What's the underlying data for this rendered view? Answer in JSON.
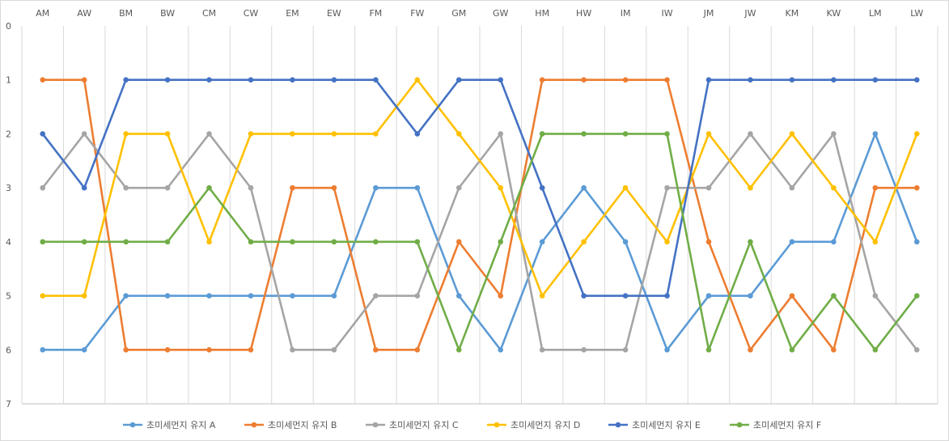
{
  "chart_data": {
    "type": "line",
    "categories": [
      "AM",
      "AW",
      "BM",
      "BW",
      "CM",
      "CW",
      "EM",
      "EW",
      "FM",
      "FW",
      "GM",
      "GW",
      "HM",
      "HW",
      "IM",
      "IW",
      "JM",
      "JW",
      "KM",
      "KW",
      "LM",
      "LW"
    ],
    "ylim": [
      0,
      7
    ],
    "y_reversed": true,
    "y_ticks": [
      "0",
      "1",
      "2",
      "3",
      "4",
      "5",
      "6",
      "7"
    ],
    "grid": "vertical",
    "legend": "bottom",
    "series": [
      {
        "name": "초미세먼지 유지 A",
        "color": "#5b9bd5",
        "values": [
          6,
          6,
          5,
          5,
          5,
          5,
          5,
          5,
          3,
          3,
          5,
          6,
          4,
          3,
          4,
          6,
          5,
          5,
          4,
          4,
          2,
          4
        ]
      },
      {
        "name": "초미세먼지 유지 B",
        "color": "#ed7d31",
        "values": [
          1,
          1,
          6,
          6,
          6,
          6,
          3,
          3,
          6,
          6,
          4,
          5,
          1,
          1,
          1,
          1,
          4,
          6,
          5,
          6,
          3,
          3
        ]
      },
      {
        "name": "초미세먼지 유지 C",
        "color": "#a5a5a5",
        "values": [
          3,
          2,
          3,
          3,
          2,
          3,
          6,
          6,
          5,
          5,
          3,
          2,
          6,
          6,
          6,
          3,
          3,
          2,
          3,
          2,
          5,
          6
        ]
      },
      {
        "name": "초미세먼지 유지 D",
        "color": "#ffc000",
        "values": [
          5,
          5,
          2,
          2,
          4,
          2,
          2,
          2,
          2,
          1,
          2,
          3,
          5,
          4,
          3,
          4,
          2,
          3,
          2,
          3,
          4,
          2
        ]
      },
      {
        "name": "초미세먼지 유지 E",
        "color": "#4472c4",
        "values": [
          2,
          3,
          1,
          1,
          1,
          1,
          1,
          1,
          1,
          2,
          1,
          1,
          3,
          5,
          5,
          5,
          1,
          1,
          1,
          1,
          1,
          1
        ]
      },
      {
        "name": "초미세먼지 유지 F",
        "color": "#70ad47",
        "values": [
          4,
          4,
          4,
          4,
          3,
          4,
          4,
          4,
          4,
          4,
          6,
          4,
          2,
          2,
          2,
          2,
          6,
          4,
          6,
          5,
          6,
          5
        ]
      }
    ]
  }
}
